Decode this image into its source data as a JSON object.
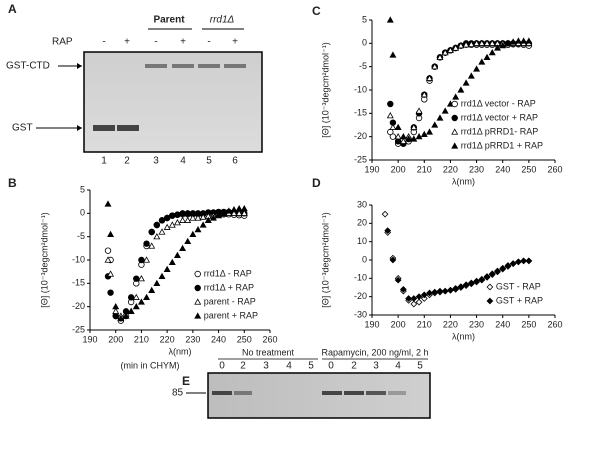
{
  "gel_a": {
    "label": "A",
    "treatment_label": "RAP",
    "treatments": [
      "-",
      "+",
      "-",
      "+",
      "-",
      "+"
    ],
    "groups": [
      "Parent",
      "rrd1Δ"
    ],
    "bands": [
      "GST-CTD",
      "GST"
    ],
    "lanes": [
      "1",
      "2",
      "3",
      "4",
      "5",
      "6"
    ]
  },
  "gel_e": {
    "label": "E",
    "groups": [
      "No treatment",
      "Rapamycin, 200 ng/ml, 2 h"
    ],
    "time_label": "(min in CHYM)",
    "times": [
      "0",
      "2",
      "3",
      "4",
      "5",
      "0",
      "2",
      "3",
      "4",
      "5"
    ],
    "size_marker": "85"
  },
  "chart_data": [
    {
      "type": "scatter",
      "panel": "B",
      "xlabel": "λ(nm)",
      "ylabel": "[Θ] (10⁻³degcm²dmol⁻¹)",
      "xlim": [
        190,
        260
      ],
      "ylim": [
        -25,
        5
      ],
      "xticks": [
        190,
        200,
        210,
        220,
        230,
        240,
        250,
        260
      ],
      "yticks": [
        -25,
        -20,
        -15,
        -10,
        -5,
        0,
        5
      ],
      "grid": false,
      "legend": "lower right",
      "x": [
        197,
        198,
        200,
        202,
        204,
        206,
        208,
        210,
        212,
        214,
        216,
        218,
        220,
        222,
        224,
        226,
        228,
        230,
        232,
        234,
        236,
        238,
        240,
        242,
        244,
        246,
        248,
        250
      ],
      "series": [
        {
          "name": "rrd1Δ - RAP",
          "color": "#000000",
          "marker": "circle",
          "filled": false,
          "values": [
            -8,
            -10,
            -22,
            -23,
            -22,
            -19,
            -15,
            -11,
            -7,
            -4,
            -2.5,
            -1.5,
            -1,
            -0.5,
            -0.3,
            -0.2,
            -0.2,
            -0.2,
            -0.2,
            -0.2,
            -0.2,
            -0.2,
            -0.2,
            -0.2,
            -0.2,
            -0.3,
            -0.4,
            -0.5
          ]
        },
        {
          "name": "rrd1Δ + RAP",
          "color": "#000000",
          "marker": "circle",
          "filled": true,
          "values": [
            -13.5,
            -17,
            -22,
            -22.5,
            -21,
            -18,
            -14,
            -10,
            -6.5,
            -4,
            -2.5,
            -1.5,
            -1,
            -0.5,
            -0.3,
            0,
            0,
            0,
            0,
            0,
            0.2,
            0.2,
            0.3,
            0.3,
            0.3,
            0.2,
            0,
            0
          ]
        },
        {
          "name": "parent - RAP",
          "color": "#000000",
          "marker": "triangle",
          "filled": false,
          "values": [
            -10,
            -13,
            -21,
            -22,
            -22,
            -21,
            -18,
            -14,
            -10,
            -7,
            -5,
            -4,
            -3,
            -2.5,
            -2,
            -1.5,
            -1.5,
            -1,
            -1,
            -0.8,
            -0.6,
            -0.5,
            -0.3,
            -0.2,
            0,
            0,
            0,
            0
          ]
        },
        {
          "name": "parent + RAP",
          "color": "#000000",
          "marker": "triangle",
          "filled": true,
          "values": [
            2,
            -4.5,
            -20,
            -22.5,
            -22,
            -21,
            -20,
            -19,
            -18,
            -16.5,
            -15,
            -13.5,
            -12,
            -10.5,
            -9,
            -7.5,
            -6,
            -4.5,
            -3.5,
            -2.5,
            -1.5,
            -1,
            -0.5,
            0,
            0.5,
            0.8,
            1,
            1
          ]
        }
      ]
    },
    {
      "type": "scatter",
      "panel": "C",
      "xlabel": "λ(nm)",
      "ylabel": "[Θ] (10⁻³degcm²dmol⁻¹)",
      "xlim": [
        190,
        260
      ],
      "ylim": [
        -25,
        5
      ],
      "xticks": [
        190,
        200,
        210,
        220,
        230,
        240,
        250,
        260
      ],
      "yticks": [
        -25,
        -20,
        -15,
        -10,
        -5,
        0,
        5
      ],
      "grid": false,
      "legend": "lower right",
      "x": [
        197,
        198,
        200,
        202,
        204,
        206,
        208,
        210,
        212,
        214,
        216,
        218,
        220,
        222,
        224,
        226,
        228,
        230,
        232,
        234,
        236,
        238,
        240,
        242,
        244,
        246,
        248,
        250
      ],
      "series": [
        {
          "name": "rrd1Δ vector - RAP",
          "color": "#000000",
          "marker": "circle",
          "filled": false,
          "values": [
            -19,
            -20,
            -21.5,
            -21.5,
            -21,
            -19,
            -16,
            -12,
            -8,
            -5,
            -3,
            -2,
            -1.5,
            -1,
            -0.5,
            -0.3,
            -0.3,
            -0.3,
            -0.3,
            -0.3,
            -0.3,
            -0.3,
            -0.3,
            -0.3,
            -0.2,
            -0.2,
            -0.3,
            -0.5
          ]
        },
        {
          "name": "rrd1Δ vector + RAP",
          "color": "#000000",
          "marker": "circle",
          "filled": true,
          "values": [
            -13,
            -17,
            -21,
            -21.5,
            -20.5,
            -18,
            -15,
            -11,
            -7.5,
            -5,
            -3,
            -2,
            -1.5,
            -1,
            -0.5,
            0,
            0,
            0,
            0,
            0,
            0,
            0,
            0,
            0,
            0,
            0,
            0,
            0
          ]
        },
        {
          "name": "rrd1Δ pRRD1- RAP",
          "color": "#000000",
          "marker": "triangle",
          "filled": false,
          "values": [
            -15.5,
            -18,
            -20,
            -21,
            -20,
            -18,
            -14.5,
            -11,
            -7.5,
            -5,
            -3,
            -2,
            -1.5,
            -1,
            -0.5,
            -0.3,
            -0.2,
            0,
            0,
            0,
            0,
            0,
            0,
            0,
            0,
            0,
            0,
            0
          ]
        },
        {
          "name": "rrd1Δ pRRD1 + RAP",
          "color": "#000000",
          "marker": "triangle",
          "filled": true,
          "values": [
            5,
            -2.5,
            -18,
            -20,
            -20.5,
            -20.5,
            -20,
            -19.5,
            -19,
            -17.5,
            -16,
            -14.5,
            -13,
            -11.5,
            -10,
            -8.5,
            -7,
            -5.5,
            -4,
            -3,
            -2,
            -1,
            -0.5,
            0,
            0.3,
            0.5,
            0.5,
            0.5
          ]
        }
      ]
    },
    {
      "type": "scatter",
      "panel": "D",
      "xlabel": "λ(nm)",
      "ylabel": "[Θ] (10⁻³degcm²dmol⁻¹)",
      "xlim": [
        190,
        260
      ],
      "ylim": [
        -30,
        30
      ],
      "xticks": [
        190,
        200,
        210,
        220,
        230,
        240,
        250,
        260
      ],
      "yticks": [
        -30,
        -20,
        -10,
        0,
        10,
        20,
        30
      ],
      "grid": false,
      "legend": "lower right",
      "x": [
        195,
        196,
        198,
        200,
        202,
        204,
        206,
        208,
        210,
        212,
        214,
        216,
        218,
        220,
        222,
        224,
        226,
        228,
        230,
        232,
        234,
        236,
        238,
        240,
        242,
        244,
        246,
        248,
        250
      ],
      "series": [
        {
          "name": "GST - RAP",
          "color": "#000000",
          "marker": "diamond",
          "filled": false,
          "values": [
            25,
            15,
            1,
            -10,
            -17,
            -22,
            -24,
            -23,
            -21,
            -19,
            -18,
            -17.5,
            -17,
            -16.5,
            -16,
            -15,
            -14,
            -13,
            -12,
            -11,
            -9.5,
            -8,
            -6.5,
            -5,
            -3.5,
            -2,
            -1,
            -0.5,
            -0.5
          ]
        },
        {
          "name": "GST + RAP",
          "color": "#000000",
          "marker": "diamond",
          "filled": true,
          "values": [
            null,
            16,
            0,
            -11,
            -16,
            -21,
            -21,
            -20,
            -19,
            -18,
            -17.5,
            -17,
            -17,
            -16.5,
            -15.5,
            -14.5,
            -13.5,
            -12.5,
            -11.5,
            -10.5,
            -9,
            -7.5,
            -6,
            -4.5,
            -3,
            -2,
            -1,
            -0.5,
            -0.5
          ]
        }
      ]
    }
  ]
}
